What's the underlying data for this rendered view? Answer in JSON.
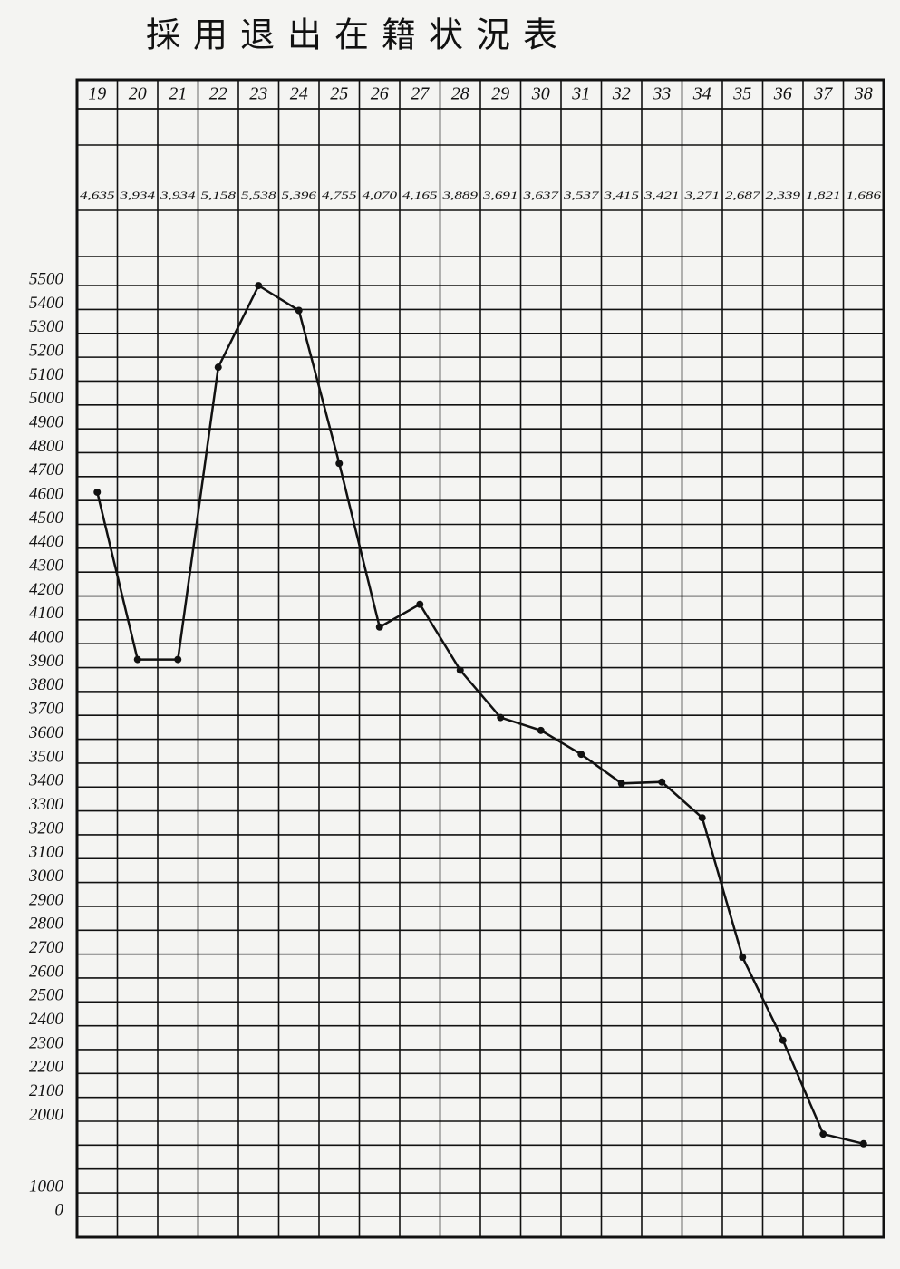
{
  "chart_data": {
    "type": "line",
    "title": "採用退出在籍状況表",
    "categories": [
      "19",
      "20",
      "21",
      "22",
      "23",
      "24",
      "25",
      "26",
      "27",
      "28",
      "29",
      "30",
      "31",
      "32",
      "33",
      "34",
      "35",
      "36",
      "37",
      "38"
    ],
    "values": [
      4635,
      3934,
      3934,
      5158,
      5538,
      5396,
      4755,
      4070,
      4165,
      3889,
      3691,
      3637,
      3537,
      3415,
      3421,
      3271,
      2687,
      2339,
      1821,
      1686
    ],
    "value_labels": [
      "4,635",
      "3,934",
      "3,934",
      "5,158",
      "5,538",
      "5,396",
      "4,755",
      "4,070",
      "4,165",
      "3,889",
      "3,691",
      "3,637",
      "3,537",
      "3,415",
      "3,421",
      "3,271",
      "2,687",
      "2,339",
      "1,821",
      "1,686"
    ],
    "color": "#111111",
    "ylim": [
      0,
      5500
    ],
    "yticks": [
      0,
      1000,
      2000,
      2100,
      2200,
      2300,
      2400,
      2500,
      2600,
      2700,
      2800,
      2900,
      3000,
      3100,
      3200,
      3300,
      3400,
      3500,
      3600,
      3700,
      3800,
      3900,
      4000,
      4100,
      4200,
      4300,
      4400,
      4500,
      4600,
      4700,
      4800,
      4900,
      5000,
      5100,
      5200,
      5300,
      5400,
      5500
    ],
    "grid": true
  }
}
